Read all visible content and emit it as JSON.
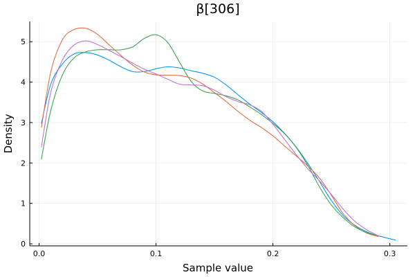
{
  "colors": {
    "background": "#ffffff",
    "axis": "#000000",
    "grid": "#e6e6e6"
  },
  "chart_data": {
    "type": "line",
    "title": "β[306]",
    "xlabel": "Sample value",
    "ylabel": "Density",
    "xlim": [
      -0.008,
      0.315
    ],
    "ylim": [
      -0.05,
      5.5
    ],
    "xticks": [
      0.0,
      0.1,
      0.2,
      0.3
    ],
    "xtick_labels": [
      "0.0",
      "0.1",
      "0.2",
      "0.3"
    ],
    "yticks": [
      0,
      1,
      2,
      3,
      4,
      5
    ],
    "ytick_labels": [
      "0",
      "1",
      "2",
      "3",
      "4",
      "5"
    ],
    "grid": true,
    "legend": "none",
    "series": [
      {
        "color": "#009AFA",
        "x": [
          0.002,
          0.01,
          0.02,
          0.03,
          0.04,
          0.05,
          0.06,
          0.07,
          0.08,
          0.09,
          0.1,
          0.11,
          0.12,
          0.13,
          0.14,
          0.15,
          0.16,
          0.17,
          0.18,
          0.19,
          0.2,
          0.21,
          0.22,
          0.23,
          0.24,
          0.25,
          0.26,
          0.27,
          0.28,
          0.29,
          0.305
        ],
        "y": [
          2.98,
          3.95,
          4.45,
          4.7,
          4.73,
          4.67,
          4.54,
          4.38,
          4.26,
          4.26,
          4.33,
          4.38,
          4.35,
          4.28,
          4.22,
          4.12,
          3.93,
          3.69,
          3.46,
          3.25,
          3.02,
          2.73,
          2.39,
          1.98,
          1.53,
          1.07,
          0.7,
          0.46,
          0.3,
          0.2,
          0.09
        ]
      },
      {
        "color": "#E26F46",
        "x": [
          0.002,
          0.01,
          0.02,
          0.03,
          0.04,
          0.05,
          0.06,
          0.07,
          0.08,
          0.09,
          0.1,
          0.11,
          0.12,
          0.13,
          0.14,
          0.15,
          0.16,
          0.17,
          0.18,
          0.19,
          0.2,
          0.21,
          0.22,
          0.23,
          0.24,
          0.25,
          0.26,
          0.27,
          0.28,
          0.29
        ],
        "y": [
          2.88,
          4.25,
          5.05,
          5.3,
          5.33,
          5.18,
          4.92,
          4.66,
          4.42,
          4.25,
          4.18,
          4.17,
          4.16,
          4.1,
          3.95,
          3.74,
          3.52,
          3.28,
          3.06,
          2.88,
          2.67,
          2.42,
          2.17,
          1.92,
          1.62,
          1.2,
          0.75,
          0.45,
          0.27,
          0.18
        ]
      },
      {
        "color": "#3DA44D",
        "x": [
          0.002,
          0.01,
          0.02,
          0.03,
          0.04,
          0.05,
          0.06,
          0.07,
          0.08,
          0.09,
          0.1,
          0.11,
          0.12,
          0.13,
          0.14,
          0.15,
          0.16,
          0.17,
          0.18,
          0.19,
          0.2,
          0.21,
          0.22,
          0.23,
          0.24,
          0.25,
          0.26,
          0.27,
          0.28,
          0.29
        ],
        "y": [
          2.1,
          3.3,
          4.18,
          4.6,
          4.75,
          4.8,
          4.8,
          4.8,
          4.87,
          5.08,
          5.17,
          4.98,
          4.5,
          4.02,
          3.78,
          3.72,
          3.66,
          3.56,
          3.39,
          3.2,
          2.98,
          2.72,
          2.38,
          1.93,
          1.4,
          0.96,
          0.65,
          0.42,
          0.28,
          0.2
        ]
      },
      {
        "color": "#C271D2",
        "x": [
          0.002,
          0.01,
          0.02,
          0.03,
          0.04,
          0.05,
          0.06,
          0.07,
          0.08,
          0.09,
          0.1,
          0.11,
          0.12,
          0.13,
          0.14,
          0.15,
          0.16,
          0.17,
          0.18,
          0.19,
          0.2,
          0.21,
          0.22,
          0.23,
          0.24,
          0.25,
          0.26,
          0.27,
          0.28,
          0.29
        ],
        "y": [
          2.4,
          3.75,
          4.55,
          4.92,
          5.02,
          4.93,
          4.78,
          4.63,
          4.47,
          4.32,
          4.2,
          4.07,
          3.95,
          3.93,
          3.91,
          3.8,
          3.64,
          3.52,
          3.44,
          3.28,
          2.96,
          2.58,
          2.2,
          1.85,
          1.55,
          1.22,
          0.86,
          0.56,
          0.35,
          0.2
        ]
      }
    ]
  }
}
